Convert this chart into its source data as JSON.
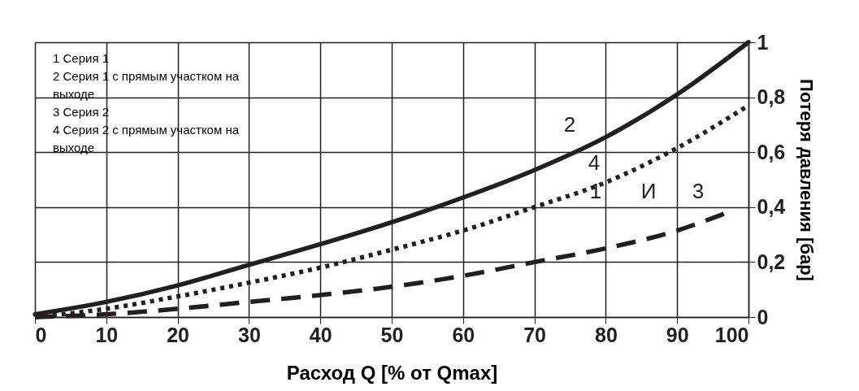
{
  "chart_data": {
    "type": "line",
    "xlabel": "Расход Q [% от Qmax]",
    "ylabel": "Потеря давления [бар]",
    "x": [
      0,
      10,
      20,
      30,
      40,
      50,
      60,
      70,
      80,
      90,
      100
    ],
    "series": [
      {
        "color": "#231f20",
        "line_style": "solid",
        "values": [
          0.01,
          0.055,
          0.115,
          0.19,
          0.265,
          0.345,
          0.435,
          0.535,
          0.655,
          0.81,
          1.0
        ]
      },
      {
        "color": "#231f20",
        "line_style": "dotted",
        "values": [
          0.0,
          0.03,
          0.075,
          0.125,
          0.18,
          0.245,
          0.315,
          0.4,
          0.49,
          0.615,
          0.77
        ]
      },
      {
        "color": "#231f20",
        "line_style": "dashed",
        "x": [
          0,
          10,
          20,
          30,
          40,
          50,
          60,
          70,
          80,
          90,
          97
        ],
        "values": [
          0.0,
          0.01,
          0.03,
          0.055,
          0.08,
          0.11,
          0.15,
          0.2,
          0.25,
          0.315,
          0.38
        ]
      }
    ],
    "xlim": [
      0,
      100
    ],
    "xticks": [
      0,
      10,
      20,
      30,
      40,
      50,
      60,
      70,
      80,
      90,
      100
    ],
    "ylim": [
      0,
      1
    ],
    "yticks": [
      {
        "value": 0,
        "label": "0"
      },
      {
        "value": 0.2,
        "label": "0,2"
      },
      {
        "value": 0.4,
        "label": "0,4"
      },
      {
        "value": 0.6,
        "label": "0,6"
      },
      {
        "value": 0.8,
        "label": "0,8"
      },
      {
        "value": 1,
        "label": "1"
      }
    ],
    "grid": true,
    "annotations": [
      "1 Серия 1",
      "2 Серия 1 с прямым участком на",
      "выходе",
      "3 Серия 2",
      "4 Серия 2 с прямым участком на",
      "выходе",
      "2",
      "4",
      "1",
      "И",
      "3"
    ]
  }
}
